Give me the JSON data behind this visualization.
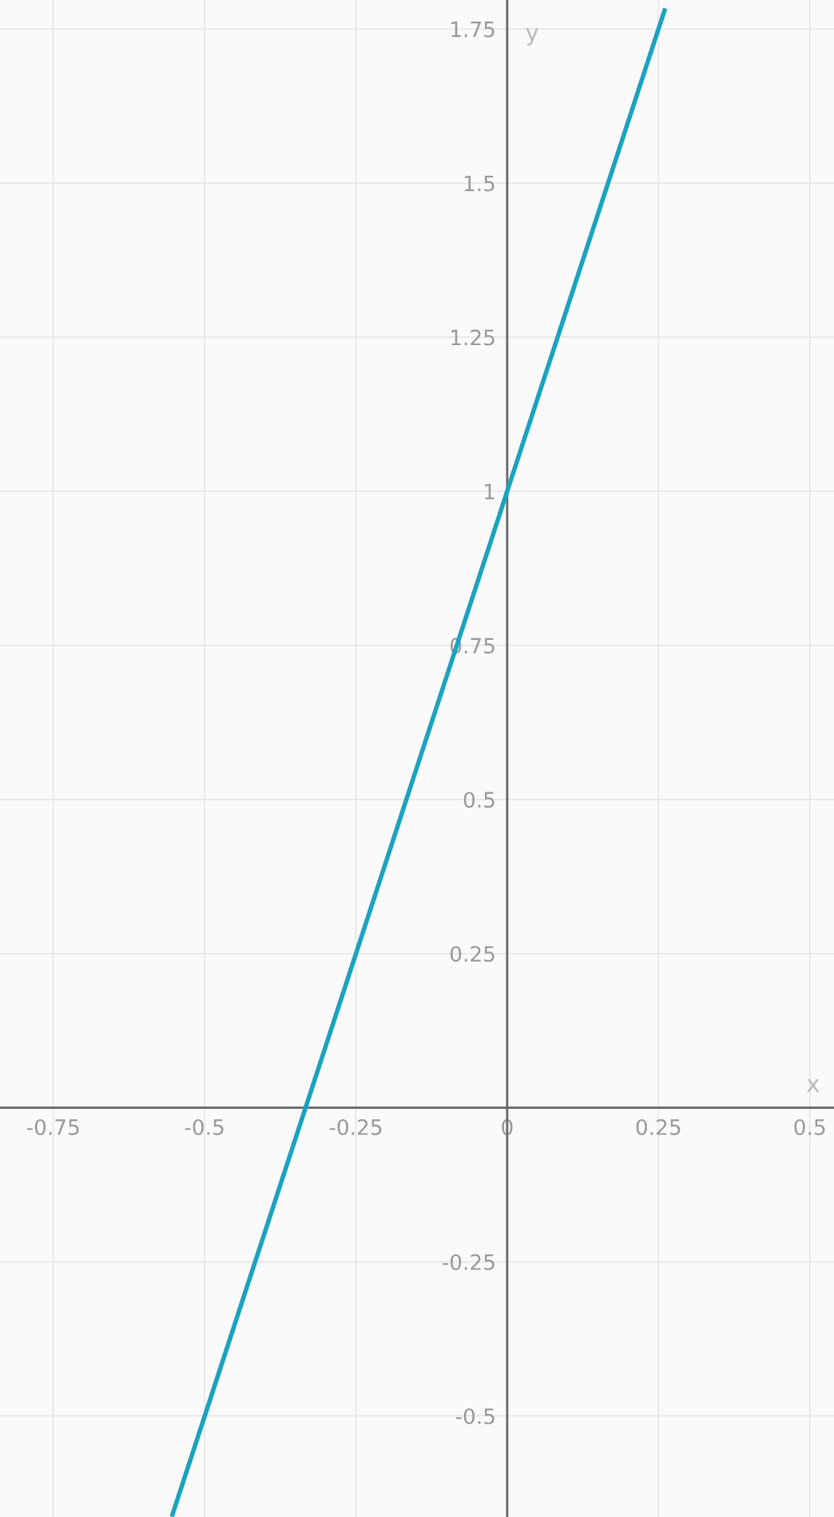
{
  "chart_data": {
    "type": "line",
    "xlabel": "x",
    "ylabel": "y",
    "x": [
      -0.553,
      0,
      0.26
    ],
    "series": [
      {
        "color": "#1aa3c0",
        "values": [
          -0.66,
          1,
          1.78
        ]
      }
    ],
    "xlim": [
      -0.838,
      0.54
    ],
    "ylim": [
      -0.664,
      1.797
    ],
    "xticks": [
      -0.75,
      -0.5,
      -0.25,
      0,
      0.25,
      0.5
    ],
    "yticks": [
      -0.5,
      -0.25,
      0.25,
      0.5,
      0.75,
      1,
      1.25,
      1.5,
      1.75
    ],
    "grid": true,
    "line_style": "solid",
    "marker": "none",
    "legend": false
  }
}
